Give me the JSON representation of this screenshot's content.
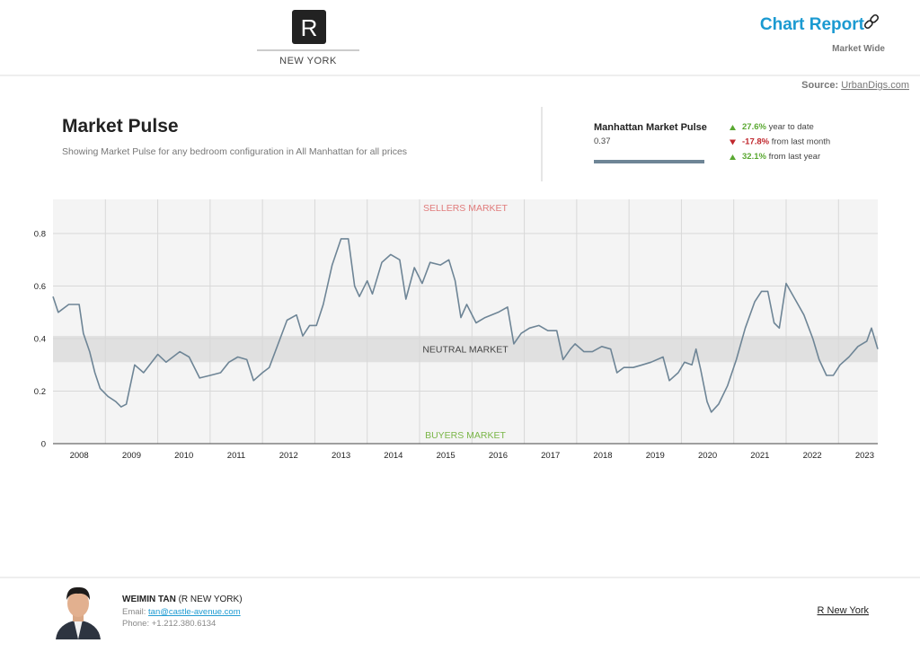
{
  "header": {
    "logo": "R",
    "brand": "NEW YORK",
    "report_title": "Chart Report",
    "report_subtitle": "Market Wide",
    "source_label": "Source:",
    "source_link": "UrbanDigs.com"
  },
  "summary": {
    "title": "Market Pulse",
    "description": "Showing Market Pulse for any bedroom configuration in All Manhattan for all prices",
    "metric_name": "Manhattan Market Pulse",
    "metric_value": "0.37",
    "changes": [
      {
        "value": "27.6%",
        "label": "year to date",
        "direction": "up"
      },
      {
        "value": "-17.8%",
        "label": "from last month",
        "direction": "down"
      },
      {
        "value": "32.1%",
        "label": "from last year",
        "direction": "up"
      }
    ]
  },
  "chart_data": {
    "type": "line",
    "color": "#6e8596",
    "x": [
      2008.0,
      2008.1,
      2008.3,
      2008.5,
      2008.58,
      2008.7,
      2008.8,
      2008.9,
      2009.05,
      2009.2,
      2009.3,
      2009.4,
      2009.56,
      2009.73,
      2010.0,
      2010.16,
      2010.42,
      2010.6,
      2010.8,
      2011.0,
      2011.2,
      2011.36,
      2011.53,
      2011.7,
      2011.83,
      2012.0,
      2012.13,
      2012.3,
      2012.47,
      2012.65,
      2012.77,
      2012.9,
      2013.03,
      2013.16,
      2013.33,
      2013.5,
      2013.64,
      2013.76,
      2013.85,
      2014.0,
      2014.1,
      2014.28,
      2014.45,
      2014.62,
      2014.74,
      2014.9,
      2015.05,
      2015.2,
      2015.4,
      2015.56,
      2015.68,
      2015.79,
      2015.9,
      2016.08,
      2016.25,
      2016.5,
      2016.68,
      2016.8,
      2016.94,
      2017.1,
      2017.28,
      2017.45,
      2017.62,
      2017.74,
      2017.88,
      2017.97,
      2018.14,
      2018.3,
      2018.48,
      2018.65,
      2018.77,
      2018.9,
      2019.08,
      2019.25,
      2019.42,
      2019.65,
      2019.77,
      2019.94,
      2020.06,
      2020.2,
      2020.28,
      2020.37,
      2020.49,
      2020.57,
      2020.71,
      2020.88,
      2021.05,
      2021.22,
      2021.4,
      2021.53,
      2021.65,
      2021.77,
      2021.87,
      2022.0,
      2022.17,
      2022.34,
      2022.51,
      2022.63,
      2022.77,
      2022.9,
      2023.03,
      2023.2,
      2023.37,
      2023.54,
      2023.63,
      2023.75
    ],
    "values": [
      0.56,
      0.5,
      0.53,
      0.53,
      0.42,
      0.35,
      0.27,
      0.21,
      0.18,
      0.16,
      0.14,
      0.15,
      0.3,
      0.27,
      0.34,
      0.31,
      0.35,
      0.33,
      0.25,
      0.26,
      0.27,
      0.31,
      0.33,
      0.32,
      0.24,
      0.27,
      0.29,
      0.38,
      0.47,
      0.49,
      0.41,
      0.45,
      0.45,
      0.53,
      0.68,
      0.78,
      0.78,
      0.6,
      0.56,
      0.62,
      0.57,
      0.69,
      0.72,
      0.7,
      0.55,
      0.67,
      0.61,
      0.69,
      0.68,
      0.7,
      0.62,
      0.48,
      0.53,
      0.46,
      0.48,
      0.5,
      0.52,
      0.38,
      0.42,
      0.44,
      0.45,
      0.43,
      0.43,
      0.32,
      0.36,
      0.38,
      0.35,
      0.35,
      0.37,
      0.36,
      0.27,
      0.29,
      0.29,
      0.3,
      0.31,
      0.33,
      0.24,
      0.27,
      0.31,
      0.3,
      0.36,
      0.28,
      0.16,
      0.12,
      0.15,
      0.22,
      0.32,
      0.44,
      0.54,
      0.58,
      0.58,
      0.46,
      0.44,
      0.61,
      0.55,
      0.49,
      0.4,
      0.32,
      0.26,
      0.26,
      0.3,
      0.33,
      0.37,
      0.39,
      0.44,
      0.36
    ],
    "xlim": [
      2008,
      2023.75
    ],
    "ylim": [
      0,
      0.93
    ],
    "xticks": [
      {
        "value": 2008.5,
        "label": "2008"
      },
      {
        "value": 2009.5,
        "label": "2009"
      },
      {
        "value": 2010.5,
        "label": "2010"
      },
      {
        "value": 2011.5,
        "label": "2011"
      },
      {
        "value": 2012.5,
        "label": "2012"
      },
      {
        "value": 2013.5,
        "label": "2013"
      },
      {
        "value": 2014.5,
        "label": "2014"
      },
      {
        "value": 2015.5,
        "label": "2015"
      },
      {
        "value": 2016.5,
        "label": "2016"
      },
      {
        "value": 2017.5,
        "label": "2017"
      },
      {
        "value": 2018.5,
        "label": "2018"
      },
      {
        "value": 2019.5,
        "label": "2019"
      },
      {
        "value": 2020.5,
        "label": "2020"
      },
      {
        "value": 2021.5,
        "label": "2021"
      },
      {
        "value": 2022.5,
        "label": "2022"
      },
      {
        "value": 2023.5,
        "label": "2023"
      }
    ],
    "xgrid": [
      2009,
      2010,
      2011,
      2012,
      2013,
      2014,
      2015,
      2016,
      2017,
      2018,
      2019,
      2020,
      2021,
      2022,
      2023
    ],
    "yticks": [
      0,
      0.2,
      0.4,
      0.6,
      0.8
    ],
    "grid": true,
    "neutral_band": [
      0.31,
      0.41
    ],
    "zone_labels": {
      "sellers": "SELLERS MARKET",
      "neutral": "NEUTRAL MARKET",
      "buyers": "BUYERS MARKET"
    }
  },
  "footer": {
    "name": "WEIMIN TAN",
    "company": "(R NEW YORK)",
    "email_label": "Email:",
    "email": "tan@castle-avenue.com",
    "phone": "Phone: +1.212.380.6134",
    "link": "R New York"
  }
}
